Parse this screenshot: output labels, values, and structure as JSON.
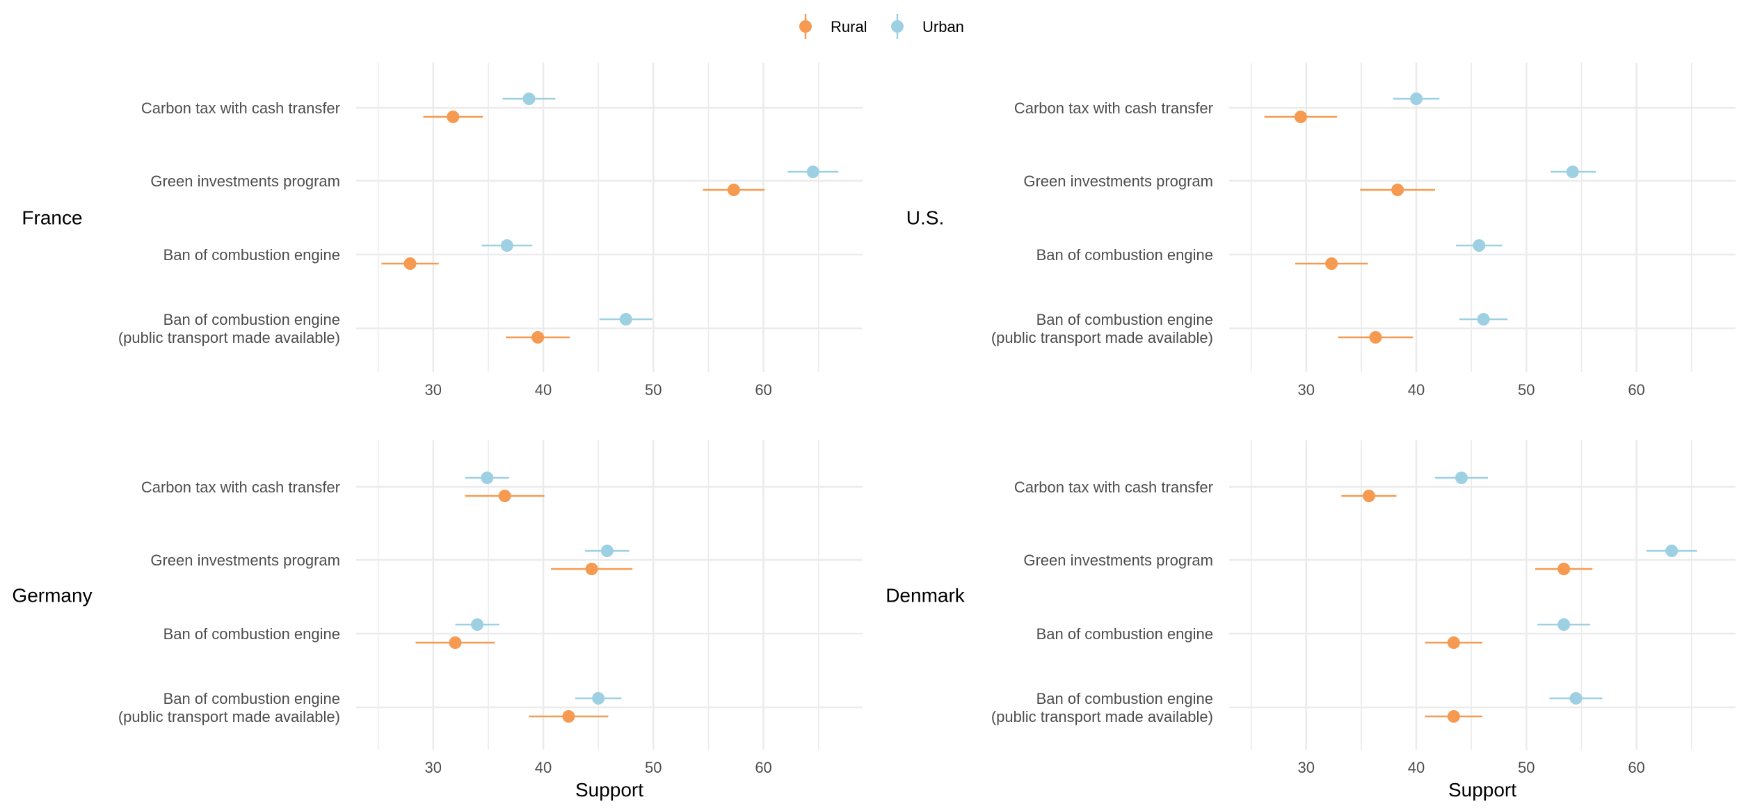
{
  "chart_data": {
    "type": "scatter",
    "subtype": "dot-and-whisker",
    "legend": {
      "position": "top",
      "entries": [
        {
          "name": "Rural",
          "color": "#F59A50"
        },
        {
          "name": "Urban",
          "color": "#9DD0E3"
        }
      ]
    },
    "categories": [
      "Carbon tax with cash transfer",
      "Green investments program",
      "Ban of combustion engine",
      "Ban of combustion engine\n(public transport made available)"
    ],
    "x_axis": {
      "label": "Support",
      "ticks": [
        30,
        40,
        50,
        60
      ],
      "xlim": [
        23,
        69
      ]
    },
    "grid": true,
    "panels": [
      {
        "country": "France",
        "series": [
          {
            "name": "Rural",
            "values": [
              31.8,
              57.3,
              27.9,
              39.5
            ],
            "lower": [
              29.1,
              54.5,
              25.3,
              36.6
            ],
            "upper": [
              34.5,
              60.1,
              30.5,
              42.4
            ]
          },
          {
            "name": "Urban",
            "values": [
              38.7,
              64.5,
              36.7,
              47.5
            ],
            "lower": [
              36.3,
              62.2,
              34.4,
              45.1
            ],
            "upper": [
              41.1,
              66.8,
              39.0,
              49.9
            ]
          }
        ]
      },
      {
        "country": "U.S.",
        "series": [
          {
            "name": "Rural",
            "values": [
              29.5,
              38.3,
              32.3,
              36.3
            ],
            "lower": [
              26.2,
              34.9,
              29.0,
              32.9
            ],
            "upper": [
              32.8,
              41.7,
              35.6,
              39.7
            ]
          },
          {
            "name": "Urban",
            "values": [
              40.0,
              54.2,
              45.7,
              46.1
            ],
            "lower": [
              37.9,
              52.2,
              43.6,
              43.9
            ],
            "upper": [
              42.1,
              56.3,
              47.8,
              48.3
            ]
          }
        ]
      },
      {
        "country": "Germany",
        "series": [
          {
            "name": "Rural",
            "values": [
              36.5,
              44.4,
              32.0,
              42.3
            ],
            "lower": [
              32.9,
              40.7,
              28.4,
              38.7
            ],
            "upper": [
              40.1,
              48.1,
              35.6,
              45.9
            ]
          },
          {
            "name": "Urban",
            "values": [
              34.9,
              45.8,
              34.0,
              45.0
            ],
            "lower": [
              32.9,
              43.8,
              32.0,
              42.9
            ],
            "upper": [
              36.9,
              47.8,
              36.0,
              47.1
            ]
          }
        ]
      },
      {
        "country": "Denmark",
        "series": [
          {
            "name": "Rural",
            "values": [
              35.7,
              53.4,
              43.4,
              43.4
            ],
            "lower": [
              33.2,
              50.8,
              40.8,
              40.8
            ],
            "upper": [
              38.2,
              56.0,
              46.0,
              46.0
            ]
          },
          {
            "name": "Urban",
            "values": [
              44.1,
              63.2,
              53.4,
              54.5
            ],
            "lower": [
              41.7,
              60.9,
              51.0,
              52.1
            ],
            "upper": [
              46.5,
              65.5,
              55.8,
              56.9
            ]
          }
        ]
      }
    ]
  }
}
